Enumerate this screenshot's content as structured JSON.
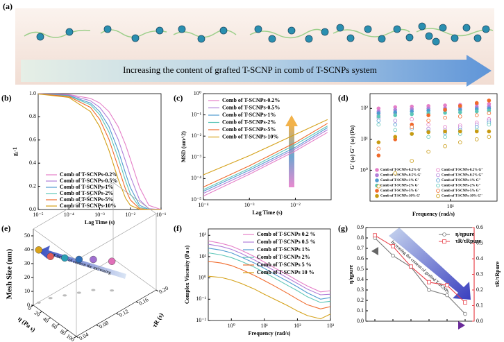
{
  "schematic": {
    "label": "(a)",
    "caption": "Increasing the content of grafted T-SCNP in comb of T-SCNPs system"
  },
  "chart_data": [
    {
      "type": "line",
      "label": "(b)",
      "xlabel": "Lag Time (s)",
      "ylabel": "g₂-1",
      "xlog": true,
      "xlim": [
        1e-05,
        0.1
      ],
      "ylim": [
        0,
        1
      ],
      "xticks": [
        {
          "value": 1e-05,
          "label": "10⁻⁵"
        },
        {
          "value": 0.0001,
          "label": "10⁻⁴"
        },
        {
          "value": 0.001,
          "label": "10⁻³"
        },
        {
          "value": 0.01,
          "label": "10⁻²"
        },
        {
          "value": 0.1,
          "label": "10⁻¹"
        }
      ],
      "yticks": [
        {
          "value": 0,
          "label": "0.0"
        },
        0.2,
        0.4,
        0.6,
        0.8,
        {
          "value": 1,
          "label": "1.0"
        }
      ],
      "x": [
        1e-05,
        0.0001,
        0.0005,
        0.001,
        0.002,
        0.004,
        0.007,
        0.01,
        0.02,
        0.04,
        0.1
      ],
      "series": [
        {
          "name": "Comb of T-SCNPs-0.2%",
          "color": "#e57fc8",
          "values": [
            0.999,
            0.992,
            0.959,
            0.92,
            0.846,
            0.717,
            0.558,
            0.435,
            0.189,
            0.036,
            0
          ]
        },
        {
          "name": "Comb of T-SCNPs-0.5%",
          "color": "#b07fd8",
          "values": [
            0.999,
            0.988,
            0.939,
            0.882,
            0.779,
            0.607,
            0.417,
            0.287,
            0.082,
            0.007,
            0
          ]
        },
        {
          "name": "Comb of T-SCNPs-1%",
          "color": "#4f9bd0",
          "values": [
            0.998,
            0.983,
            0.92,
            0.846,
            0.717,
            0.513,
            0.311,
            0.189,
            0.036,
            0.001,
            0
          ]
        },
        {
          "name": "Comb of T-SCNPs-2%",
          "color": "#5cc6b8",
          "values": [
            0.998,
            0.98,
            0.905,
            0.819,
            0.67,
            0.449,
            0.247,
            0.135,
            0.018,
            0,
            0
          ]
        },
        {
          "name": "Comb of T-SCNPs-5%",
          "color": "#f0692a",
          "values": [
            0.998,
            0.975,
            0.882,
            0.779,
            0.607,
            0.368,
            0.174,
            0.082,
            0.007,
            0,
            0
          ]
        },
        {
          "name": "Comb of T-SCNPs-10%",
          "color": "#d4a017",
          "values": [
            0.997,
            0.967,
            0.846,
            0.717,
            0.513,
            0.264,
            0.097,
            0.036,
            0.001,
            0,
            0
          ]
        }
      ]
    },
    {
      "type": "line",
      "label": "(c)",
      "xlabel": "Lag Time (s)",
      "ylabel": "MSD (um^2)",
      "xlog": true,
      "ylog": true,
      "xlim": [
        0.0001,
        0.06
      ],
      "ylim": [
        1e-05,
        1
      ],
      "xticks": [
        {
          "value": 0.0001,
          "label": "10⁻⁴"
        },
        {
          "value": 0.001,
          "label": "10⁻³"
        },
        {
          "value": 0.01,
          "label": "10⁻²"
        }
      ],
      "yticks": [
        {
          "value": 1e-05,
          "label": "10⁻⁵"
        },
        {
          "value": 0.0001,
          "label": "10⁻⁴"
        },
        {
          "value": 0.001,
          "label": "10⁻³"
        },
        {
          "value": 0.01,
          "label": "10⁻²"
        },
        {
          "value": 0.1,
          "label": "10⁻¹"
        },
        {
          "value": 1,
          "label": "10⁰"
        }
      ],
      "x": [
        0.0001,
        0.001,
        0.01,
        0.05
      ],
      "series": [
        {
          "name": "Comb of T-SCNPs-0.2%",
          "color": "#e57fc8",
          "values": [
            1.5e-05,
            0.00016,
            0.002,
            0.015
          ]
        },
        {
          "name": "Comb of T-SCNPs-0.5%",
          "color": "#b07fd8",
          "values": [
            2e-05,
            0.0002,
            0.0025,
            0.02
          ]
        },
        {
          "name": "Comb of T-SCNPs-1%",
          "color": "#4f9bd0",
          "values": [
            2.5e-05,
            0.00025,
            0.003,
            0.025
          ]
        },
        {
          "name": "Comb of T-SCNPs-2%",
          "color": "#5cc6b8",
          "values": [
            3e-05,
            0.0003,
            0.004,
            0.03
          ]
        },
        {
          "name": "Comb of T-SCNPs-5%",
          "color": "#f0692a",
          "values": [
            4e-05,
            0.0004,
            0.005,
            0.04
          ]
        },
        {
          "name": "Comb of T-SCNPs-10%",
          "color": "#d4a017",
          "values": [
            0.00015,
            0.0012,
            0.012,
            0.06
          ]
        }
      ]
    },
    {
      "type": "scatter",
      "label": "(d)",
      "xlabel": "Frequency (rad/s)",
      "ylabel": "G' (ω) G'' (ω) (Pa)",
      "xlog": true,
      "ylog": true,
      "xlim": [
        0.35,
        70
      ],
      "ylim": [
        0.1,
        300
      ],
      "xticks": [
        {
          "value": 10,
          "label": "10¹"
        }
      ],
      "yticks": [
        {
          "value": 1,
          "label": "10⁰"
        },
        {
          "value": 10,
          "label": "10¹"
        },
        {
          "value": 100,
          "label": "10²"
        }
      ],
      "x": [
        0.5,
        1,
        2,
        4,
        8,
        15,
        30,
        50
      ],
      "series": [
        {
          "name": "Comb of T-SCNPs-0.2% G'",
          "color": "#e57fc8",
          "filled": true,
          "values": [
            100,
            110,
            115,
            120,
            125,
            130,
            135,
            140
          ]
        },
        {
          "name": "Comb of T-SCNPs-0.2% G''",
          "color": "#e57fc8",
          "filled": false,
          "values": [
            60,
            70,
            45,
            30,
            25,
            28,
            35,
            45
          ]
        },
        {
          "name": "Comb of T-SCNPs-0.5% G'",
          "color": "#b07fd8",
          "filled": true,
          "values": [
            80,
            90,
            95,
            100,
            100,
            105,
            110,
            115
          ]
        },
        {
          "name": "Comb of T-SCNPs-0.5% G''",
          "color": "#b07fd8",
          "filled": false,
          "values": [
            50,
            40,
            30,
            22,
            20,
            24,
            30,
            40
          ]
        },
        {
          "name": "Comb of T-SCNPs-1% G'",
          "color": "#4f9bd0",
          "filled": true,
          "values": [
            70,
            75,
            80,
            85,
            88,
            90,
            95,
            100
          ]
        },
        {
          "name": "Comb of T-SCNPs-1% G''",
          "color": "#4f9bd0",
          "filled": false,
          "values": [
            40,
            30,
            22,
            18,
            16,
            20,
            25,
            35
          ]
        },
        {
          "name": "Comb of T-SCNPs-2% G'",
          "color": "#5cc6b8",
          "filled": true,
          "values": [
            55,
            60,
            65,
            70,
            72,
            75,
            80,
            85
          ]
        },
        {
          "name": "Comb of T-SCNPs-2% G''",
          "color": "#5cc6b8",
          "filled": false,
          "values": [
            30,
            20,
            15,
            12,
            12,
            15,
            20,
            30
          ]
        },
        {
          "name": "Comb of T-SCNPs-5% G'",
          "color": "#f0692a",
          "filled": true,
          "values": [
            3,
            10,
            30,
            60,
            90,
            120,
            150,
            180
          ]
        },
        {
          "name": "Comb of T-SCNPs-5% G''",
          "color": "#f0692a",
          "filled": false,
          "values": [
            5,
            12,
            25,
            40,
            50,
            55,
            60,
            70
          ]
        },
        {
          "name": "Comb of T-SCNPs-10% G'",
          "color": "#c89a10",
          "filled": true,
          "values": [
            8,
            12,
            15,
            17,
            18,
            18,
            18,
            18
          ]
        },
        {
          "name": "Comb of T-SCNPs-10% G''",
          "color": "#c89a10",
          "filled": false,
          "values": [
            0.3,
            0.8,
            2,
            4,
            6,
            8,
            10,
            12
          ]
        }
      ]
    },
    {
      "type": "scatter3d",
      "label": "(e)",
      "xlabel": "η (Pa s)",
      "ylabel": "τR (s)",
      "zlabel": "Mesh Size (nm)",
      "annotation": "T-SCNP of content the increasing",
      "xlim": [
        0,
        100
      ],
      "ylim": [
        0.04,
        0.2
      ],
      "zlim": [
        0,
        55
      ],
      "xticks": [
        0,
        20,
        40,
        60,
        80,
        100
      ],
      "yticks": [
        0.04,
        0.08,
        0.12,
        0.16,
        {
          "value": 0.2,
          "label": "0.20"
        }
      ],
      "zticks": [
        0,
        10,
        20,
        30,
        40,
        50
      ],
      "x": [
        1,
        5,
        15,
        25,
        35,
        55
      ],
      "y": [
        0.05,
        0.07,
        0.09,
        0.11,
        0.13,
        0.15
      ],
      "z": [
        38,
        30,
        27,
        24,
        22,
        21
      ],
      "colors": [
        "#d9a21a",
        "#e05a5a",
        "#2a9fb5",
        "#2f6fb8",
        "#a070d0",
        "#e06fb8"
      ]
    },
    {
      "type": "line",
      "label": "(f)",
      "xlabel": "Frequency (rad/s)",
      "ylabel": "Complex Viscosity (Pa s)",
      "xlog": true,
      "ylog": true,
      "xlim": [
        0.2,
        1000
      ],
      "ylim": [
        0.01,
        200
      ],
      "xticks": [
        {
          "value": 1,
          "label": "10⁰"
        },
        {
          "value": 10,
          "label": "10¹"
        },
        {
          "value": 100,
          "label": "10²"
        },
        {
          "value": 1000,
          "label": "10³"
        }
      ],
      "yticks": [
        {
          "value": 0.01,
          "label": "10⁻²"
        },
        {
          "value": 0.1,
          "label": "10⁻¹"
        },
        {
          "value": 1,
          "label": "10⁰"
        },
        {
          "value": 10,
          "label": "10¹"
        },
        {
          "value": 100,
          "label": "10²"
        }
      ],
      "x": [
        0.2,
        0.5,
        1,
        2,
        5,
        10,
        20,
        50,
        100,
        200,
        500,
        1000
      ],
      "series": [
        {
          "name": "Comb of T-SCNPs 0.2 %",
          "color": "#e57fc8",
          "values": [
            55,
            42,
            31,
            20,
            10,
            5.5,
            3,
            1.4,
            0.75,
            0.42,
            0.22,
            0.25
          ]
        },
        {
          "name": "Comb of T-SCNPs 0.5 %",
          "color": "#b07fd8",
          "values": [
            38,
            30,
            22,
            14,
            7,
            4,
            2.2,
            1,
            0.55,
            0.3,
            0.16,
            0.17
          ]
        },
        {
          "name": "Comb of T-SCNPs 1%",
          "color": "#4f9bd0",
          "values": [
            25,
            20,
            15,
            9.5,
            5,
            2.8,
            1.5,
            0.7,
            0.38,
            0.2,
            0.1,
            0.12
          ]
        },
        {
          "name": "Comb of T-SCNPs  2%",
          "color": "#5cc6b8",
          "values": [
            15,
            12,
            9,
            6,
            3.2,
            1.8,
            1,
            0.45,
            0.25,
            0.13,
            0.07,
            0.08
          ]
        },
        {
          "name": "Comb of T-SCNPs 5 %",
          "color": "#f0692a",
          "values": [
            6,
            5,
            3.8,
            2.5,
            1.3,
            0.75,
            0.42,
            0.19,
            0.1,
            0.055,
            0.035,
            0.045
          ]
        },
        {
          "name": "Comb of T-SCNPs 10 %",
          "color": "#d4a017",
          "values": [
            1.2,
            1.05,
            0.8,
            0.55,
            0.3,
            0.17,
            0.1,
            0.05,
            0.028,
            0.017,
            0.012,
            0.02
          ]
        }
      ]
    },
    {
      "type": "line",
      "label": "(g)",
      "ylabel": "η/ηpure",
      "y2label": "τR/τRpure",
      "annotation": "Increasing the content of grafted T-SCNPs",
      "categories": [
        null,
        null,
        null,
        null,
        null,
        null
      ],
      "ylim": [
        0,
        0.9
      ],
      "y2lim": [
        0,
        0.6
      ],
      "yticks": [
        {
          "value": 0,
          "label": "0.0"
        },
        0.1,
        0.2,
        0.3,
        0.4,
        0.5,
        0.6,
        0.7,
        0.8,
        0.9
      ],
      "y2ticks": [
        {
          "value": 0,
          "label": "0.0"
        },
        0.1,
        0.2,
        0.3,
        0.4,
        0.5,
        0.6
      ],
      "series": [
        {
          "name": "η/ηpure",
          "color": "#777777",
          "marker": "circle",
          "values": [
            0.8,
            0.63,
            0.52,
            0.3,
            0.25,
            0.07
          ]
        },
        {
          "name": "τR/τRpure",
          "color": "#e8424b",
          "marker": "square",
          "axis": "y2",
          "values": [
            0.55,
            0.48,
            0.35,
            0.25,
            0.23,
            0.12
          ]
        }
      ]
    }
  ]
}
